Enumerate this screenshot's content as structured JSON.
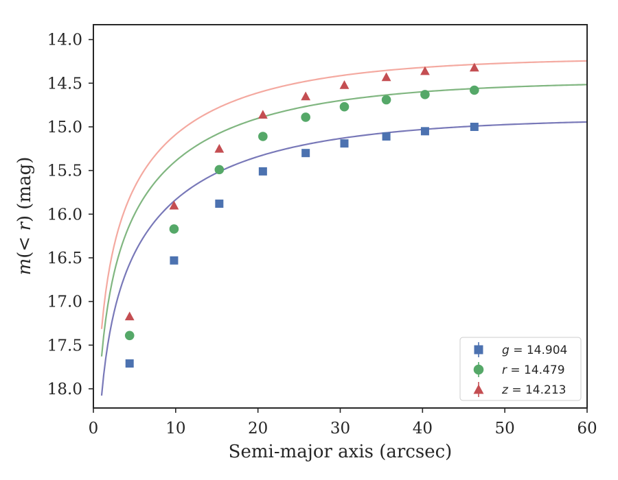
{
  "chart_data": {
    "type": "scatter",
    "title": "",
    "xlabel": "Semi-major axis (arcsec)",
    "ylabel": "m(< r) (mag)",
    "xlim": [
      0,
      60
    ],
    "ylim": [
      18.22,
      13.83
    ],
    "y_inverted": true,
    "xticks": [
      0,
      10,
      20,
      30,
      40,
      50,
      60
    ],
    "yticks": [
      14.0,
      14.5,
      15.0,
      15.5,
      16.0,
      16.5,
      17.0,
      17.5,
      18.0
    ],
    "x": [
      4.4,
      9.8,
      15.3,
      20.6,
      25.8,
      30.5,
      35.6,
      40.3,
      46.3
    ],
    "series": [
      {
        "name": "g",
        "legend_label": "g = 14.904",
        "marker": "square",
        "color": "#4c72b0",
        "fit_color": "#7878b8",
        "values": [
          17.71,
          16.53,
          15.88,
          15.51,
          15.3,
          15.19,
          15.11,
          15.05,
          15.0
        ],
        "fit": {
          "asymptote": 14.904,
          "scale": 18.1
        }
      },
      {
        "name": "r",
        "legend_label": "r = 14.479",
        "marker": "circle",
        "color": "#55a868",
        "fit_color": "#80b680",
        "values": [
          17.39,
          16.17,
          15.49,
          15.11,
          14.89,
          14.77,
          14.69,
          14.63,
          14.58
        ],
        "fit": {
          "asymptote": 14.479,
          "scale": 17.7
        }
      },
      {
        "name": "z",
        "legend_label": "z = 14.213",
        "marker": "triangle",
        "color": "#c44e52",
        "fit_color": "#f4a9a0",
        "values": [
          17.17,
          15.9,
          15.25,
          14.86,
          14.65,
          14.52,
          14.43,
          14.36,
          14.32
        ],
        "fit": {
          "asymptote": 14.213,
          "scale": 16.9
        }
      }
    ],
    "legend": {
      "position": "lower-right",
      "entries": [
        "g = 14.904",
        "r = 14.479",
        "z = 14.213"
      ]
    }
  }
}
